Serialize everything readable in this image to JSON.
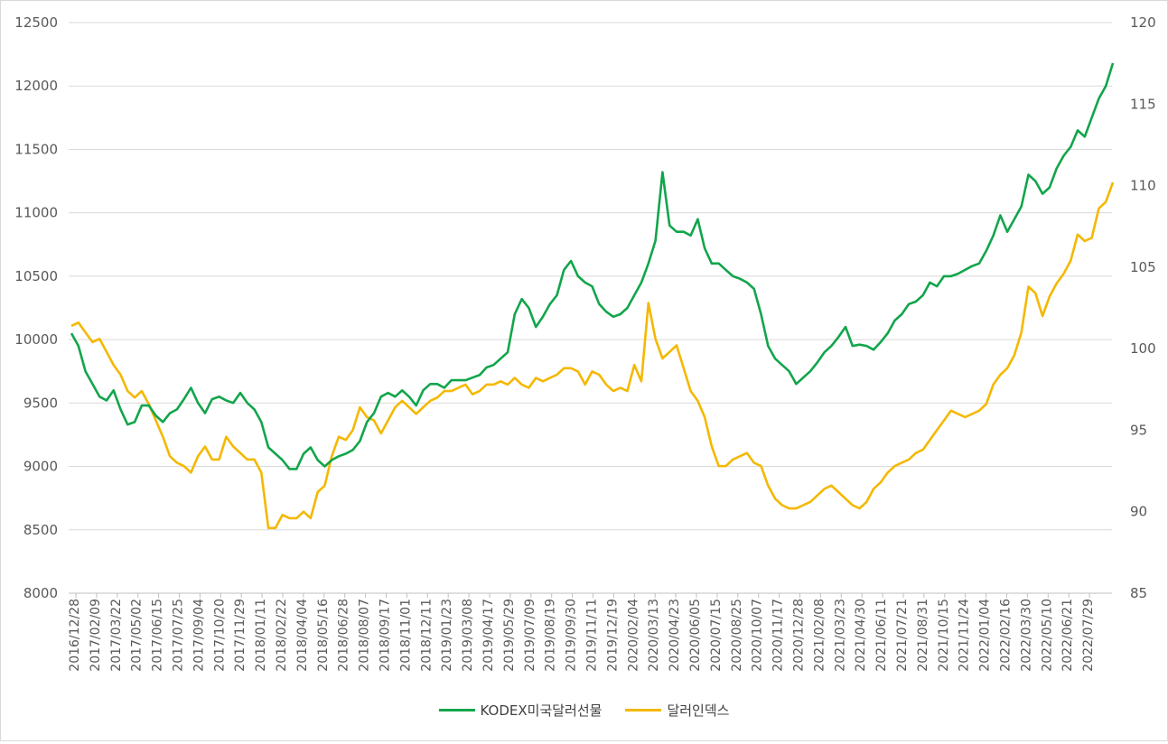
{
  "chart_data": {
    "type": "line",
    "left_axis": {
      "min": 8000,
      "max": 12500,
      "ticks": [
        "12500",
        "12000",
        "11500",
        "11000",
        "10500",
        "10000",
        "9500",
        "9000",
        "8500",
        "8000"
      ]
    },
    "right_axis": {
      "min": 85,
      "max": 120,
      "ticks": [
        "120",
        "115",
        "110",
        "105",
        "100",
        "95",
        "90",
        "85"
      ]
    },
    "x_tick_labels": [
      "2016/12/28",
      "2017/02/09",
      "2017/03/22",
      "2017/05/02",
      "2017/06/15",
      "2017/07/25",
      "2017/09/04",
      "2017/10/20",
      "2017/11/29",
      "2018/01/11",
      "2018/02/22",
      "2018/04/04",
      "2018/05/16",
      "2018/06/28",
      "2018/08/07",
      "2018/09/17",
      "2018/11/01",
      "2018/12/11",
      "2019/01/23",
      "2019/03/08",
      "2019/04/17",
      "2019/05/29",
      "2019/07/09",
      "2019/08/19",
      "2019/09/30",
      "2019/11/11",
      "2019/12/19",
      "2020/02/04",
      "2020/03/13",
      "2020/04/23",
      "2020/06/05",
      "2020/07/15",
      "2020/08/25",
      "2020/10/07",
      "2020/11/17",
      "2020/12/28",
      "2021/02/08",
      "2021/03/23",
      "2021/04/30",
      "2021/06/11",
      "2021/07/21",
      "2021/08/31",
      "2021/10/15",
      "2021/11/24",
      "2022/01/04",
      "2022/02/16",
      "2022/03/30",
      "2022/05/10",
      "2022/06/21",
      "2022/07/29"
    ],
    "grid": "horizontal",
    "legend_position": "bottom",
    "series": [
      {
        "name": "KODEX미국달러선물",
        "axis": "left",
        "color": "#12a54b",
        "values": [
          10050,
          9950,
          9750,
          9650,
          9550,
          9520,
          9600,
          9450,
          9330,
          9350,
          9480,
          9480,
          9400,
          9350,
          9420,
          9450,
          9530,
          9620,
          9500,
          9420,
          9530,
          9550,
          9520,
          9500,
          9580,
          9500,
          9450,
          9350,
          9150,
          9100,
          9050,
          8980,
          8980,
          9100,
          9150,
          9050,
          9000,
          9050,
          9080,
          9100,
          9130,
          9200,
          9350,
          9420,
          9550,
          9580,
          9550,
          9600,
          9550,
          9480,
          9600,
          9650,
          9650,
          9620,
          9680,
          9680,
          9680,
          9700,
          9720,
          9780,
          9800,
          9850,
          9900,
          10200,
          10320,
          10250,
          10100,
          10180,
          10280,
          10350,
          10550,
          10620,
          10500,
          10450,
          10420,
          10280,
          10220,
          10180,
          10200,
          10250,
          10350,
          10450,
          10600,
          10780,
          11320,
          10900,
          10850,
          10850,
          10820,
          10950,
          10720,
          10600,
          10600,
          10550,
          10500,
          10480,
          10450,
          10400,
          10200,
          9950,
          9850,
          9800,
          9750,
          9650,
          9700,
          9750,
          9820,
          9900,
          9950,
          10020,
          10100,
          9950,
          9960,
          9950,
          9920,
          9980,
          10050,
          10150,
          10200,
          10280,
          10300,
          10350,
          10450,
          10420,
          10500,
          10500,
          10520,
          10550,
          10580,
          10600,
          10700,
          10820,
          10980,
          10850,
          10950,
          11050,
          11300,
          11250,
          11150,
          11200,
          11350,
          11450,
          11520,
          11650,
          11600,
          11750,
          11900,
          12000,
          12180
        ]
      },
      {
        "name": "달러인덱스",
        "axis": "right",
        "color": "#f4b800",
        "values": [
          101.4,
          101.6,
          101.0,
          100.4,
          100.6,
          99.8,
          99.0,
          98.4,
          97.4,
          97.0,
          97.4,
          96.6,
          95.6,
          94.6,
          93.4,
          93.0,
          92.8,
          92.4,
          93.4,
          94.0,
          93.2,
          93.2,
          94.6,
          94.0,
          93.6,
          93.2,
          93.2,
          92.4,
          89.0,
          89.0,
          89.8,
          89.6,
          89.6,
          90.0,
          89.6,
          91.2,
          91.6,
          93.4,
          94.6,
          94.4,
          95.0,
          96.4,
          95.8,
          95.6,
          94.8,
          95.6,
          96.4,
          96.8,
          96.4,
          96.0,
          96.4,
          96.8,
          97.0,
          97.4,
          97.4,
          97.6,
          97.8,
          97.2,
          97.4,
          97.8,
          97.8,
          98.0,
          97.8,
          98.2,
          97.8,
          97.6,
          98.2,
          98.0,
          98.2,
          98.4,
          98.8,
          98.8,
          98.6,
          97.8,
          98.6,
          98.4,
          97.8,
          97.4,
          97.6,
          97.4,
          99.0,
          98.0,
          102.8,
          100.6,
          99.4,
          99.8,
          100.2,
          98.8,
          97.4,
          96.8,
          95.8,
          94.0,
          92.8,
          92.8,
          93.2,
          93.4,
          93.6,
          93.0,
          92.8,
          91.6,
          90.8,
          90.4,
          90.2,
          90.2,
          90.4,
          90.6,
          91.0,
          91.4,
          91.6,
          91.2,
          90.8,
          90.4,
          90.2,
          90.6,
          91.4,
          91.8,
          92.4,
          92.8,
          93.0,
          93.2,
          93.6,
          93.8,
          94.4,
          95.0,
          95.6,
          96.2,
          96.0,
          95.8,
          96.0,
          96.2,
          96.6,
          97.8,
          98.4,
          98.8,
          99.6,
          101.0,
          103.8,
          103.4,
          102.0,
          103.2,
          104.0,
          104.6,
          105.4,
          107.0,
          106.6,
          106.8,
          108.6,
          109.0,
          110.2
        ]
      }
    ]
  }
}
